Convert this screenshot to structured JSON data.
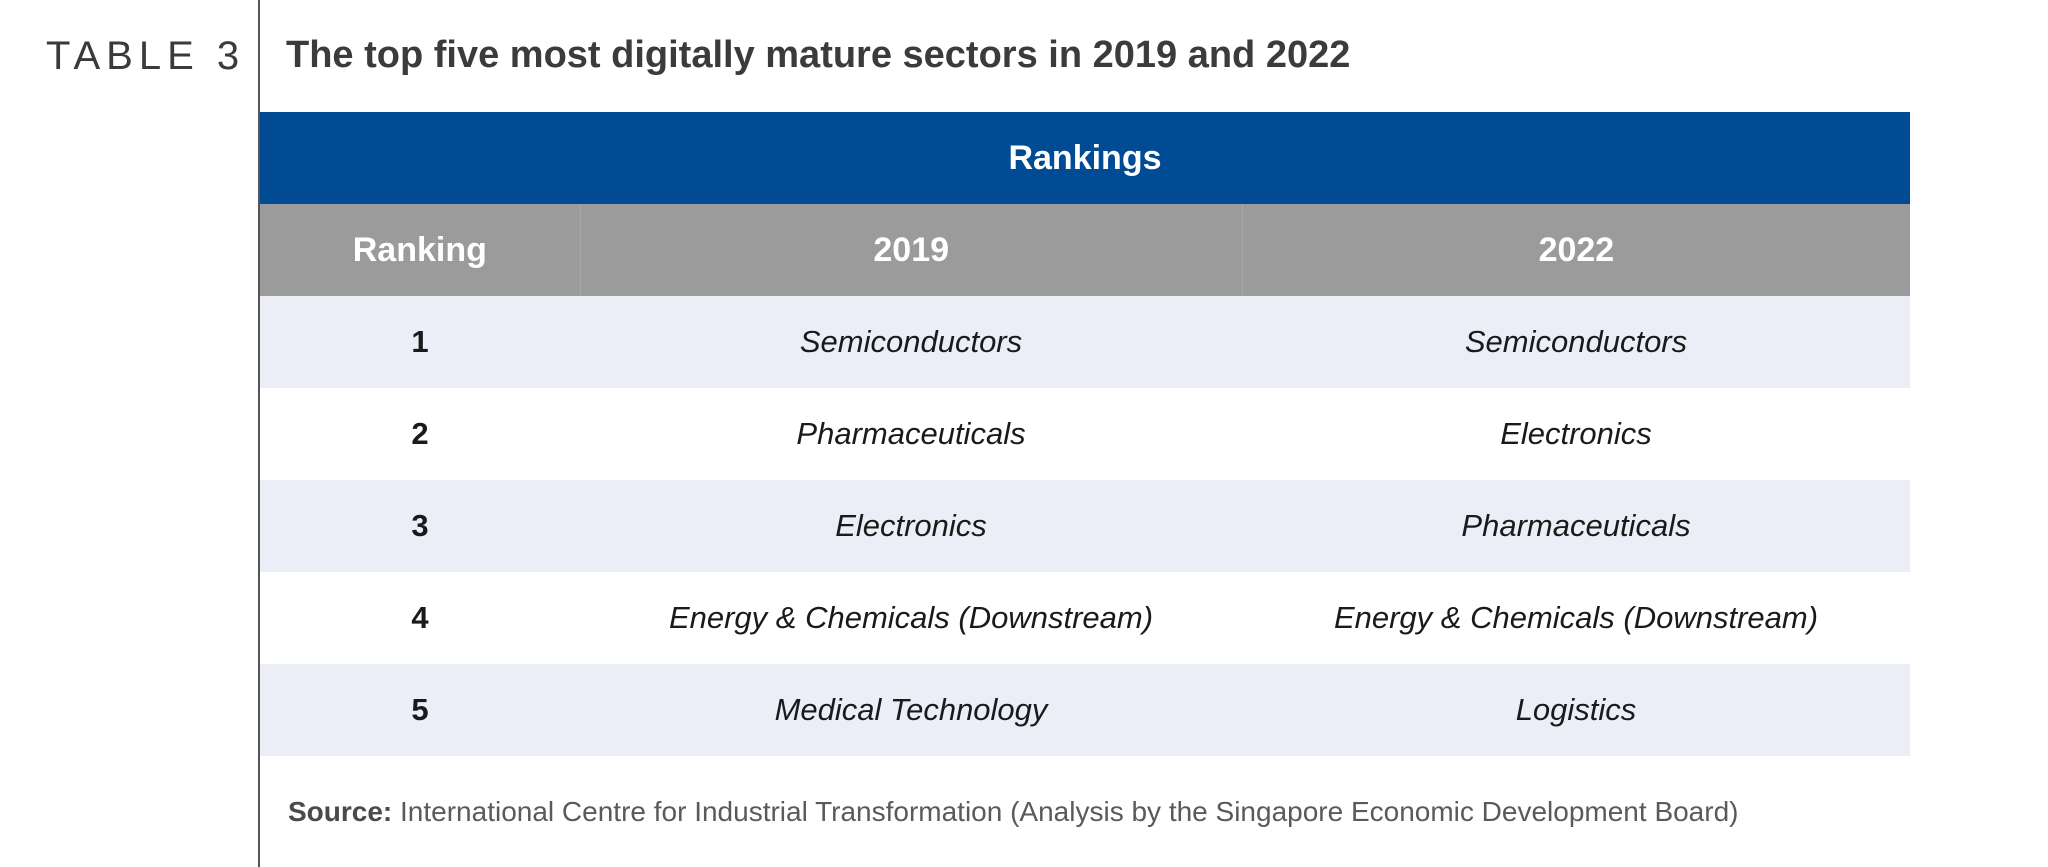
{
  "table_label": "TABLE 3",
  "title": "The top five most digitally mature sectors in 2019 and 2022",
  "band_title": "Rankings",
  "columns": [
    "Ranking",
    "2019",
    "2022"
  ],
  "rows": [
    {
      "rank": "1",
      "y2019": "Semiconductors",
      "y2022": "Semiconductors"
    },
    {
      "rank": "2",
      "y2019": "Pharmaceuticals",
      "y2022": "Electronics"
    },
    {
      "rank": "3",
      "y2019": "Electronics",
      "y2022": "Pharmaceuticals"
    },
    {
      "rank": "4",
      "y2019": "Energy & Chemicals (Downstream)",
      "y2022": "Energy & Chemicals (Downstream)"
    },
    {
      "rank": "5",
      "y2019": "Medical Technology",
      "y2022": "Logistics"
    }
  ],
  "source": {
    "label": "Source:",
    "text": " International Centre for Industrial Transformation (Analysis by the Singapore Economic Development Board)"
  },
  "colors": {
    "band": "#004b94",
    "header": "#9b9b9b",
    "row_shade": "#ebeef6"
  }
}
